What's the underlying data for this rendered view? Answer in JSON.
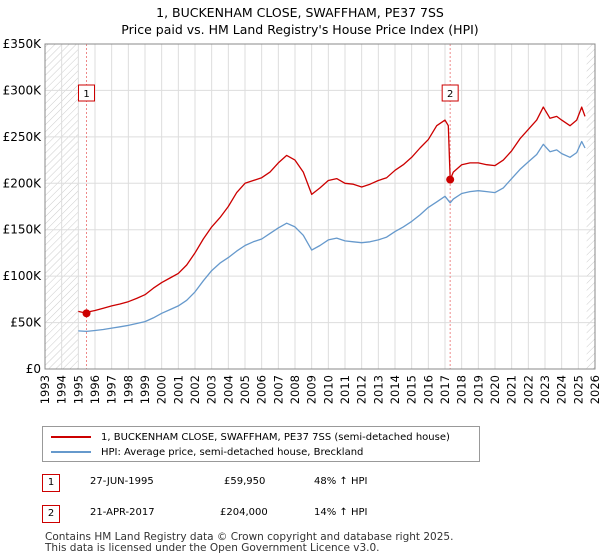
{
  "header": {
    "title": "1, BUCKENHAM CLOSE, SWAFFHAM, PE37 7SS",
    "subtitle": "Price paid vs. HM Land Registry's House Price Index (HPI)"
  },
  "chart_data": {
    "type": "line",
    "title": "1, BUCKENHAM CLOSE, SWAFFHAM, PE37 7SS",
    "subtitle": "Price paid vs. HM Land Registry's House Price Index (HPI)",
    "xlabel": "",
    "ylabel": "",
    "xlim": [
      1993,
      2026
    ],
    "ylim": [
      0,
      350000
    ],
    "grid": true,
    "y_ticks": [
      0,
      50000,
      100000,
      150000,
      200000,
      250000,
      300000,
      350000
    ],
    "y_tick_labels": [
      "£0",
      "£50K",
      "£100K",
      "£150K",
      "£200K",
      "£250K",
      "£300K",
      "£350K"
    ],
    "x_ticks": [
      1993,
      1994,
      1995,
      1996,
      1997,
      1998,
      1999,
      2000,
      2001,
      2002,
      2003,
      2004,
      2005,
      2006,
      2007,
      2008,
      2009,
      2010,
      2011,
      2012,
      2013,
      2014,
      2015,
      2016,
      2017,
      2018,
      2019,
      2020,
      2021,
      2022,
      2023,
      2024,
      2025,
      2026
    ],
    "x_tick_labels": [
      "1993",
      "1994",
      "1995",
      "1996",
      "1997",
      "1998",
      "1999",
      "2000",
      "2001",
      "2002",
      "2003",
      "2004",
      "2005",
      "2006",
      "2007",
      "2008",
      "2009",
      "2010",
      "2011",
      "2012",
      "2013",
      "2014",
      "2015",
      "2016",
      "2017",
      "2018",
      "2019",
      "2020",
      "2021",
      "2022",
      "2023",
      "2024",
      "2025",
      "2026"
    ],
    "hatched_regions": [
      [
        1993,
        1995.0
      ],
      [
        2025.5,
        2026
      ]
    ],
    "series": [
      {
        "name": "1, BUCKENHAM CLOSE, SWAFFHAM, PE37 7SS (semi-detached house)",
        "color": "#cc0000",
        "x": [
          1995.0,
          1995.49,
          1995.75,
          1996.0,
          1996.5,
          1997.0,
          1997.5,
          1998.0,
          1998.5,
          1999.0,
          1999.5,
          2000.0,
          2000.5,
          2001.0,
          2001.5,
          2002.0,
          2002.5,
          2003.0,
          2003.5,
          2004.0,
          2004.5,
          2005.0,
          2005.5,
          2006.0,
          2006.5,
          2007.0,
          2007.5,
          2008.0,
          2008.5,
          2009.0,
          2009.5,
          2010.0,
          2010.5,
          2011.0,
          2011.5,
          2012.0,
          2012.5,
          2013.0,
          2013.5,
          2014.0,
          2014.5,
          2015.0,
          2015.5,
          2016.0,
          2016.5,
          2017.0,
          2017.2,
          2017.31,
          2017.5,
          2018.0,
          2018.5,
          2019.0,
          2019.5,
          2020.0,
          2020.5,
          2021.0,
          2021.5,
          2022.0,
          2022.5,
          2022.9,
          2023.3,
          2023.7,
          2024.0,
          2024.5,
          2024.9,
          2025.2,
          2025.4
        ],
        "values": [
          62000,
          59950,
          62000,
          63000,
          65500,
          68000,
          70000,
          72500,
          76000,
          80000,
          87000,
          93000,
          98000,
          103000,
          112000,
          125000,
          140000,
          153000,
          163000,
          175000,
          190000,
          200000,
          203000,
          206000,
          212000,
          222000,
          230000,
          225000,
          212000,
          188000,
          195000,
          203000,
          205000,
          200000,
          199000,
          196000,
          199000,
          203000,
          206000,
          214000,
          220000,
          228000,
          238000,
          247000,
          262000,
          268000,
          262000,
          204000,
          212000,
          220000,
          222000,
          222000,
          220000,
          219000,
          225000,
          235000,
          248000,
          258000,
          268000,
          282000,
          270000,
          272000,
          268000,
          262000,
          268000,
          282000,
          272000
        ]
      },
      {
        "name": "HPI: Average price, semi-detached house, Breckland",
        "color": "#6699cc",
        "x": [
          1995.0,
          1995.5,
          1996.0,
          1996.5,
          1997.0,
          1997.5,
          1998.0,
          1998.5,
          1999.0,
          1999.5,
          2000.0,
          2000.5,
          2001.0,
          2001.5,
          2002.0,
          2002.5,
          2003.0,
          2003.5,
          2004.0,
          2004.5,
          2005.0,
          2005.5,
          2006.0,
          2006.5,
          2007.0,
          2007.5,
          2008.0,
          2008.5,
          2009.0,
          2009.5,
          2010.0,
          2010.5,
          2011.0,
          2011.5,
          2012.0,
          2012.5,
          2013.0,
          2013.5,
          2014.0,
          2014.5,
          2015.0,
          2015.5,
          2016.0,
          2016.5,
          2017.0,
          2017.31,
          2017.5,
          2018.0,
          2018.5,
          2019.0,
          2019.5,
          2020.0,
          2020.5,
          2021.0,
          2021.5,
          2022.0,
          2022.5,
          2022.9,
          2023.3,
          2023.7,
          2024.0,
          2024.5,
          2024.9,
          2025.2,
          2025.4
        ],
        "values": [
          41000,
          40500,
          41500,
          42500,
          44000,
          45500,
          47000,
          49000,
          51000,
          55000,
          60000,
          64000,
          68000,
          74000,
          83000,
          95000,
          106000,
          114000,
          120000,
          127000,
          133000,
          137000,
          140000,
          146000,
          152000,
          157000,
          153000,
          144000,
          128000,
          133000,
          139000,
          141000,
          138000,
          137000,
          136000,
          137000,
          139000,
          142000,
          148000,
          153000,
          159000,
          166000,
          174000,
          180000,
          186000,
          179000,
          183000,
          189000,
          191000,
          192000,
          191000,
          190000,
          195000,
          205000,
          215000,
          223000,
          231000,
          242000,
          234000,
          236000,
          232000,
          228000,
          233000,
          245000,
          238000
        ]
      }
    ],
    "annotations": [
      {
        "label": "1",
        "x": 1995.49,
        "price": 59950
      },
      {
        "label": "2",
        "x": 2017.31,
        "price": 204000
      }
    ]
  },
  "legend": {
    "items": [
      {
        "label": "1, BUCKENHAM CLOSE, SWAFFHAM, PE37 7SS (semi-detached house)",
        "color": "#cc0000"
      },
      {
        "label": "HPI: Average price, semi-detached house, Breckland",
        "color": "#6699cc"
      }
    ]
  },
  "sales": [
    {
      "num": "1",
      "date": "27-JUN-1995",
      "price": "£59,950",
      "hpi": "48% ↑ HPI"
    },
    {
      "num": "2",
      "date": "21-APR-2017",
      "price": "£204,000",
      "hpi": "14% ↑ HPI"
    }
  ],
  "footer": {
    "line1": "Contains HM Land Registry data © Crown copyright and database right 2025.",
    "line2": "This data is licensed under the Open Government Licence v3.0."
  }
}
